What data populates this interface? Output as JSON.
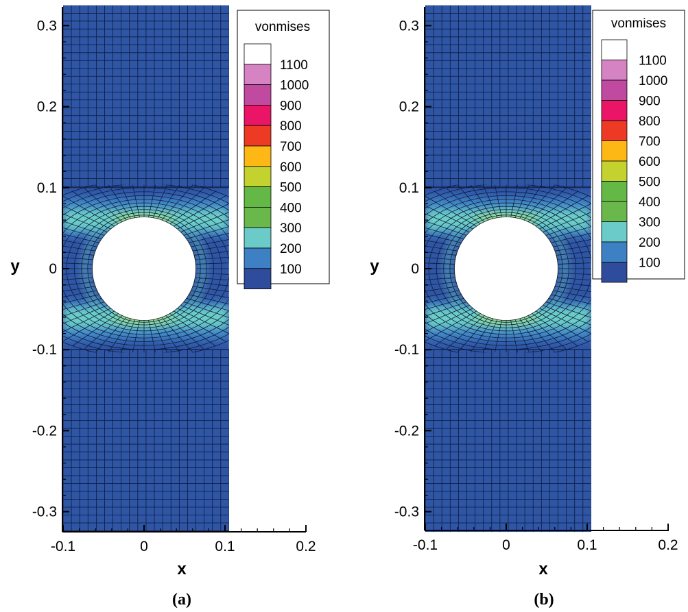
{
  "chart_data": [
    {
      "type": "heatmap",
      "panel_label": "(a)",
      "xlabel": "x",
      "ylabel": "y",
      "xlim": [
        -0.1,
        0.2
      ],
      "ylim": [
        -0.33,
        0.33
      ],
      "x_ticks": [
        "-0.1",
        "0",
        "0.1",
        "0.2"
      ],
      "x_tick_values": [
        -0.1,
        0,
        0.1,
        0.2
      ],
      "y_ticks": [
        "0.3",
        "0.2",
        "0.1",
        "0",
        "-0.1",
        "-0.2",
        "-0.3"
      ],
      "y_tick_values": [
        0.3,
        0.2,
        0.1,
        0,
        -0.1,
        -0.2,
        -0.3
      ],
      "plate": {
        "x_min": -0.1,
        "x_max": 0.105,
        "y_min": -0.325,
        "y_max": 0.325
      },
      "hole": {
        "cx": 0,
        "cy": 0,
        "radius": 0.064
      },
      "legend": {
        "title": "vonmises",
        "position": "top-right",
        "levels": [
          {
            "label": "1100",
            "color": "#ffffff"
          },
          {
            "label": "1000",
            "color": "#d683c4"
          },
          {
            "label": "900",
            "color": "#c04a9f"
          },
          {
            "label": "800",
            "color": "#ea1567"
          },
          {
            "label": "700",
            "color": "#ec3a24"
          },
          {
            "label": "600",
            "color": "#fdb815"
          },
          {
            "label": "500",
            "color": "#c3d22e"
          },
          {
            "label": "400",
            "color": "#63b846"
          },
          {
            "label": "300",
            "color": "#6ab84b"
          },
          {
            "label": "200",
            "color": "#6acbc8"
          },
          {
            "label": "100",
            "color": "#3d80c3"
          },
          {
            "label": "",
            "color": "#2f4b9c"
          }
        ]
      },
      "field_colors": {
        "base": "#2f55a5",
        "mid": "#3f86c6",
        "high": "#6ccfc6",
        "peak": "#9ee27a"
      }
    },
    {
      "type": "heatmap",
      "panel_label": "(b)",
      "xlabel": "x",
      "ylabel": "y",
      "xlim": [
        -0.1,
        0.2
      ],
      "ylim": [
        -0.33,
        0.33
      ],
      "x_ticks": [
        "-0.1",
        "0",
        "0.1",
        "0.2"
      ],
      "x_tick_values": [
        -0.1,
        0,
        0.1,
        0.2
      ],
      "y_ticks": [
        "0.3",
        "0.2",
        "0.1",
        "0",
        "-0.1",
        "-0.2",
        "-0.3"
      ],
      "y_tick_values": [
        0.3,
        0.2,
        0.1,
        0,
        -0.1,
        -0.2,
        -0.3
      ],
      "plate": {
        "x_min": -0.1,
        "x_max": 0.105,
        "y_min": -0.325,
        "y_max": 0.325
      },
      "hole": {
        "cx": 0,
        "cy": 0,
        "radius": 0.064
      },
      "legend": {
        "title": "vonmises",
        "position": "top-right",
        "levels": [
          {
            "label": "1100",
            "color": "#ffffff"
          },
          {
            "label": "1000",
            "color": "#d683c4"
          },
          {
            "label": "900",
            "color": "#c04a9f"
          },
          {
            "label": "800",
            "color": "#ea1567"
          },
          {
            "label": "700",
            "color": "#ec3a24"
          },
          {
            "label": "600",
            "color": "#fdb815"
          },
          {
            "label": "500",
            "color": "#c3d22e"
          },
          {
            "label": "400",
            "color": "#63b846"
          },
          {
            "label": "300",
            "color": "#6ab84b"
          },
          {
            "label": "200",
            "color": "#6acbc8"
          },
          {
            "label": "100",
            "color": "#3d80c3"
          },
          {
            "label": "",
            "color": "#2f4b9c"
          }
        ]
      },
      "field_colors": {
        "base": "#2f55a5",
        "mid": "#3f86c6",
        "high": "#6ccfc6",
        "peak": "#9ee27a"
      }
    }
  ]
}
